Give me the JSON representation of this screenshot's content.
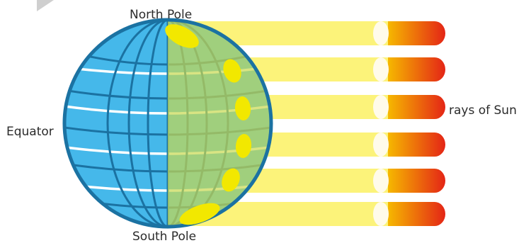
{
  "labels": {
    "north_pole": "North Pole",
    "south_pole": "South Pole",
    "equator": "Equator",
    "rays": "rays of Sun"
  },
  "colors": {
    "ocean": "#45b8ea",
    "grid": "#1b72a2",
    "latitude_highlight": "#ffffff",
    "ray_band": "#fcf37a",
    "illuminated_half": "#c7d84e",
    "spot": "#f2e800",
    "ray_tip_start": "#f6b800",
    "ray_tip_end": "#e42516",
    "spark": "#fffbea",
    "corner_mark": "#cfcfcf"
  },
  "ray_count": 6
}
